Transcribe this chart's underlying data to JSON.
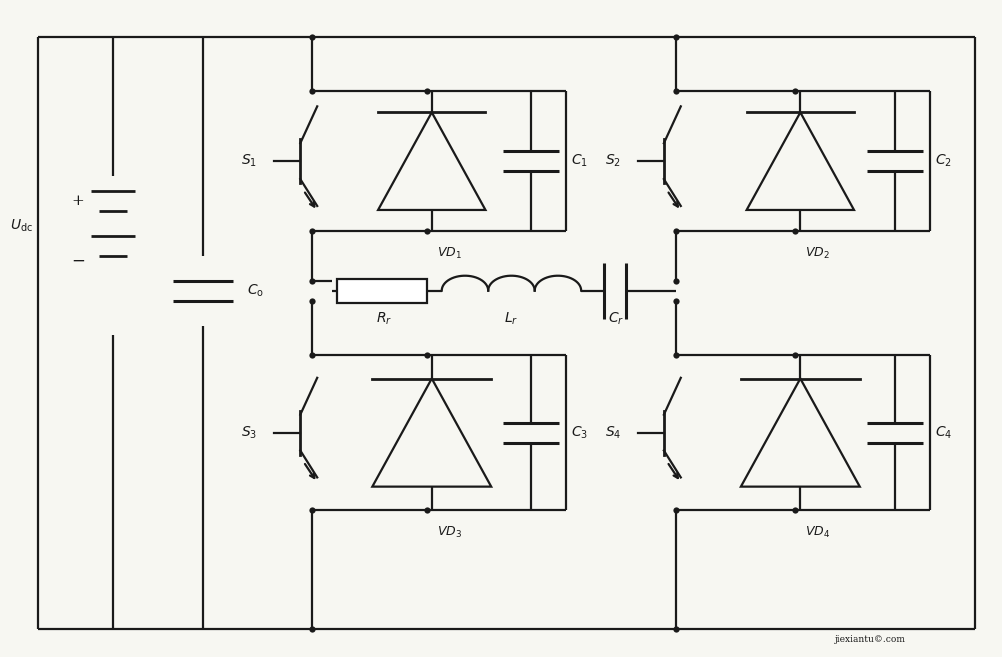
{
  "bg_color": "#f7f7f2",
  "line_color": "#1a1a1a",
  "lw": 1.6,
  "dot_size": 4.5,
  "figsize": [
    10.03,
    6.57
  ],
  "dpi": 100
}
